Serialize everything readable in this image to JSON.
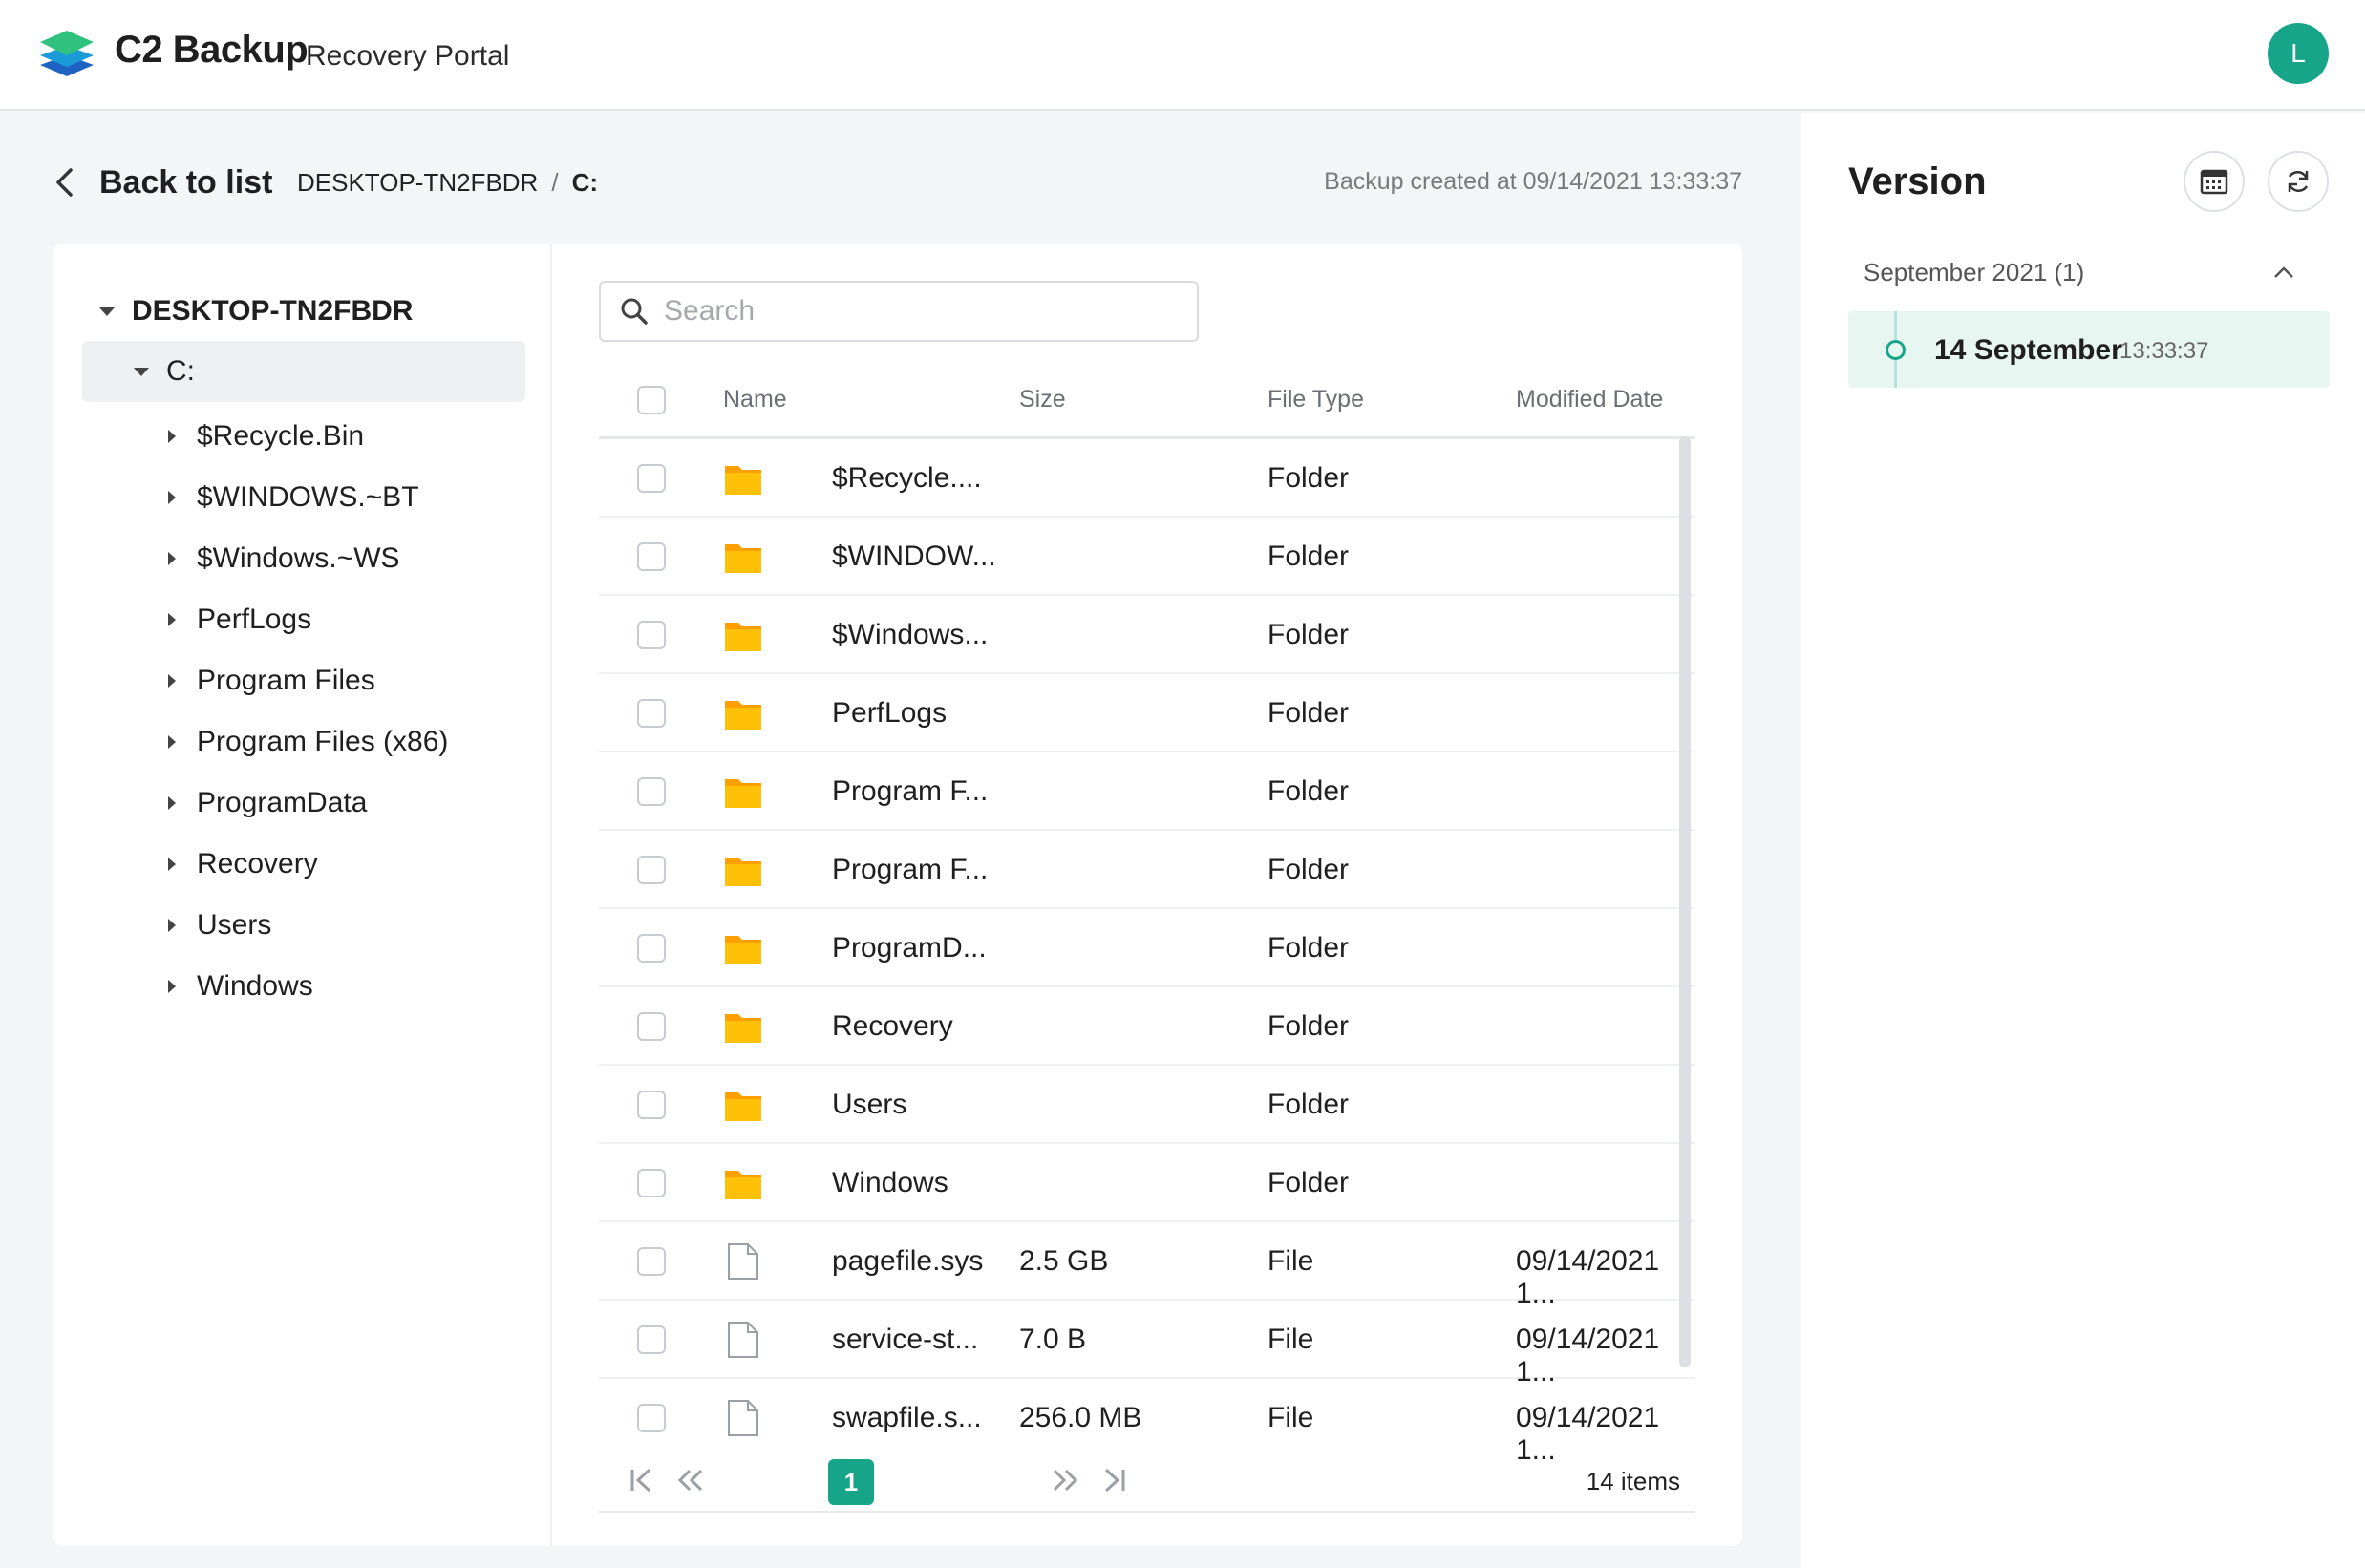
{
  "header": {
    "brand": "C2 Backup",
    "subtitle": "Recovery Portal",
    "avatar_initial": "L",
    "accent_color": "#17a589"
  },
  "breadcrumb": {
    "back_label": "Back to list",
    "device": "DESKTOP-TN2FBDR",
    "separator": "/",
    "current": "C:"
  },
  "backup_created": "Backup created at 09/14/2021 13:33:37",
  "tree": {
    "root": "DESKTOP-TN2FBDR",
    "drive": "C:",
    "items": [
      {
        "label": "$Recycle.Bin"
      },
      {
        "label": "$WINDOWS.~BT"
      },
      {
        "label": "$Windows.~WS"
      },
      {
        "label": "PerfLogs"
      },
      {
        "label": "Program Files"
      },
      {
        "label": "Program Files (x86)"
      },
      {
        "label": "ProgramData"
      },
      {
        "label": "Recovery"
      },
      {
        "label": "Users"
      },
      {
        "label": "Windows"
      }
    ]
  },
  "search": {
    "placeholder": "Search",
    "value": ""
  },
  "table": {
    "columns": {
      "name": "Name",
      "size": "Size",
      "type": "File Type",
      "modified": "Modified Date"
    },
    "rows": [
      {
        "icon": "folder-icon",
        "name": "$Recycle....",
        "size": "",
        "type": "Folder",
        "modified": ""
      },
      {
        "icon": "folder-icon",
        "name": "$WINDOW...",
        "size": "",
        "type": "Folder",
        "modified": ""
      },
      {
        "icon": "folder-icon",
        "name": "$Windows...",
        "size": "",
        "type": "Folder",
        "modified": ""
      },
      {
        "icon": "folder-icon",
        "name": "PerfLogs",
        "size": "",
        "type": "Folder",
        "modified": ""
      },
      {
        "icon": "folder-icon",
        "name": "Program F...",
        "size": "",
        "type": "Folder",
        "modified": ""
      },
      {
        "icon": "folder-icon",
        "name": "Program F...",
        "size": "",
        "type": "Folder",
        "modified": ""
      },
      {
        "icon": "folder-icon",
        "name": "ProgramD...",
        "size": "",
        "type": "Folder",
        "modified": ""
      },
      {
        "icon": "folder-icon",
        "name": "Recovery",
        "size": "",
        "type": "Folder",
        "modified": ""
      },
      {
        "icon": "folder-icon",
        "name": "Users",
        "size": "",
        "type": "Folder",
        "modified": ""
      },
      {
        "icon": "folder-icon",
        "name": "Windows",
        "size": "",
        "type": "Folder",
        "modified": ""
      },
      {
        "icon": "file-icon",
        "name": "pagefile.sys",
        "size": "2.5 GB",
        "type": "File",
        "modified": "09/14/2021 1..."
      },
      {
        "icon": "file-icon",
        "name": "service-st...",
        "size": "7.0 B",
        "type": "File",
        "modified": "09/14/2021 1..."
      },
      {
        "icon": "file-icon",
        "name": "swapfile.s...",
        "size": "256.0 MB",
        "type": "File",
        "modified": "09/14/2021 1..."
      }
    ]
  },
  "pagination": {
    "current_page": "1",
    "total": "14 items"
  },
  "version": {
    "title": "Version",
    "month": "September 2021 (1)",
    "entries": [
      {
        "date": "14 September",
        "time": "13:33:37"
      }
    ]
  },
  "colors": {
    "folder": "#ffb300",
    "accent": "#17a589",
    "selected_bg": "#e8f6f2"
  }
}
